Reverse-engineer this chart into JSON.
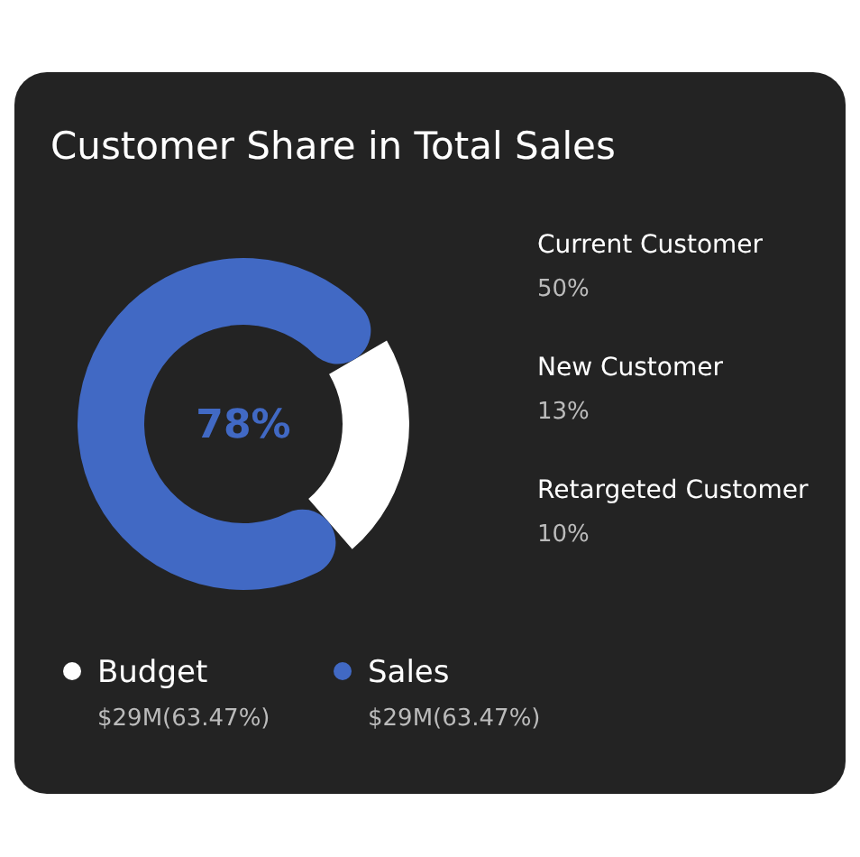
{
  "chart_data": {
    "type": "donut",
    "title": "Customer Share in Total Sales",
    "categories": [
      "Sales",
      "Budget"
    ],
    "values": [
      78,
      22
    ],
    "colors": [
      "#4169c4",
      "#ffffff"
    ],
    "value_labels": [
      "78%",
      null
    ],
    "legend": "bottom",
    "annotations": [
      "Current Customer",
      "50%",
      "New Customer",
      "13%",
      "Retargeted Customer",
      "10%",
      "$29M(63.47%)",
      "$29M(63.47%)"
    ]
  }
}
